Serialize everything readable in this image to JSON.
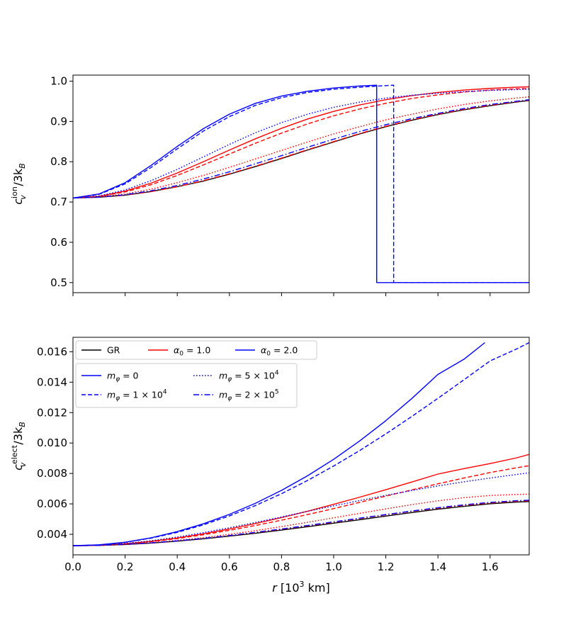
{
  "chart_data": [
    {
      "type": "line",
      "panel": "top",
      "ylabel": "c_v^ion/3k_B",
      "ylabel_main": "c",
      "ylabel_sup": "ion",
      "ylabel_sub": "v",
      "ylabel_rest": "/3k",
      "ylabel_rest_sub": "B",
      "xlim": [
        0.0,
        1.75
      ],
      "ylim": [
        0.475,
        1.015
      ],
      "yticks": [
        0.5,
        0.6,
        0.7,
        0.8,
        0.9,
        1.0
      ],
      "yticklabels": [
        "0.5",
        "0.6",
        "0.7",
        "0.8",
        "0.9",
        "1.0"
      ],
      "xticks": [
        0.0,
        0.2,
        0.4,
        0.6,
        0.8,
        1.0,
        1.2,
        1.4,
        1.6
      ],
      "xticklabels_visible": false,
      "series": [
        {
          "group": "GR",
          "style": "solid",
          "color": "#000000",
          "x": [
            0.0,
            0.1,
            0.2,
            0.3,
            0.4,
            0.5,
            0.6,
            0.7,
            0.8,
            0.9,
            1.0,
            1.1,
            1.2,
            1.3,
            1.4,
            1.5,
            1.6,
            1.7,
            1.75
          ],
          "y": [
            0.71,
            0.712,
            0.717,
            0.726,
            0.738,
            0.752,
            0.769,
            0.788,
            0.808,
            0.829,
            0.849,
            0.869,
            0.887,
            0.903,
            0.917,
            0.929,
            0.939,
            0.948,
            0.952
          ]
        },
        {
          "group": "alpha1",
          "style": "solid",
          "color": "#ff0000",
          "x": [
            0.0,
            0.1,
            0.2,
            0.3,
            0.4,
            0.5,
            0.6,
            0.7,
            0.8,
            0.9,
            1.0,
            1.1,
            1.2,
            1.3,
            1.4,
            1.5,
            1.6,
            1.7,
            1.75
          ],
          "y": [
            0.71,
            0.714,
            0.727,
            0.747,
            0.772,
            0.8,
            0.829,
            0.857,
            0.883,
            0.906,
            0.925,
            0.941,
            0.954,
            0.964,
            0.972,
            0.978,
            0.982,
            0.985,
            0.986
          ]
        },
        {
          "group": "alpha1",
          "style": "dashed",
          "color": "#ff0000",
          "x": [
            0.0,
            0.1,
            0.2,
            0.3,
            0.4,
            0.5,
            0.6,
            0.7,
            0.8,
            0.9,
            1.0,
            1.1,
            1.2,
            1.3,
            1.4,
            1.5,
            1.6,
            1.7,
            1.75
          ],
          "y": [
            0.71,
            0.714,
            0.725,
            0.743,
            0.766,
            0.792,
            0.819,
            0.846,
            0.871,
            0.894,
            0.914,
            0.931,
            0.945,
            0.957,
            0.966,
            0.973,
            0.978,
            0.981,
            0.982
          ]
        },
        {
          "group": "alpha1",
          "style": "dotted",
          "color": "#ff0000",
          "x": [
            0.0,
            0.1,
            0.2,
            0.3,
            0.4,
            0.5,
            0.6,
            0.7,
            0.8,
            0.9,
            1.0,
            1.1,
            1.2,
            1.3,
            1.4,
            1.5,
            1.6,
            1.7,
            1.75
          ],
          "y": [
            0.71,
            0.713,
            0.72,
            0.732,
            0.748,
            0.766,
            0.786,
            0.807,
            0.828,
            0.849,
            0.869,
            0.887,
            0.904,
            0.918,
            0.931,
            0.942,
            0.951,
            0.958,
            0.961
          ]
        },
        {
          "group": "alpha1",
          "style": "dashdot",
          "color": "#ff0000",
          "x": [
            0.0,
            0.1,
            0.2,
            0.3,
            0.4,
            0.5,
            0.6,
            0.7,
            0.8,
            0.9,
            1.0,
            1.1,
            1.2,
            1.3,
            1.4,
            1.5,
            1.6,
            1.7,
            1.75
          ],
          "y": [
            0.71,
            0.712,
            0.717,
            0.726,
            0.738,
            0.753,
            0.77,
            0.789,
            0.809,
            0.83,
            0.85,
            0.87,
            0.888,
            0.904,
            0.918,
            0.93,
            0.94,
            0.949,
            0.953
          ]
        },
        {
          "group": "alpha2",
          "style": "solid",
          "color": "#0000ff",
          "x": [
            0.0,
            0.1,
            0.2,
            0.3,
            0.4,
            0.5,
            0.6,
            0.7,
            0.8,
            0.9,
            1.0,
            1.1,
            1.165,
            1.165,
            1.75
          ],
          "y": [
            0.71,
            0.72,
            0.748,
            0.791,
            0.838,
            0.882,
            0.918,
            0.945,
            0.963,
            0.975,
            0.983,
            0.988,
            0.99,
            0.5,
            0.5
          ]
        },
        {
          "group": "alpha2",
          "style": "dashed",
          "color": "#0000ff",
          "x": [
            0.0,
            0.1,
            0.2,
            0.3,
            0.4,
            0.5,
            0.6,
            0.7,
            0.8,
            0.9,
            1.0,
            1.1,
            1.2,
            1.23,
            1.23,
            1.75
          ],
          "y": [
            0.71,
            0.719,
            0.745,
            0.786,
            0.832,
            0.876,
            0.912,
            0.94,
            0.959,
            0.972,
            0.98,
            0.985,
            0.989,
            0.99,
            0.5,
            0.5
          ]
        },
        {
          "group": "alpha2",
          "style": "dotted",
          "color": "#0000ff",
          "x": [
            0.0,
            0.1,
            0.2,
            0.3,
            0.4,
            0.5,
            0.6,
            0.7,
            0.8,
            0.9,
            1.0,
            1.1,
            1.2,
            1.3,
            1.4,
            1.5,
            1.6,
            1.7,
            1.75
          ],
          "y": [
            0.71,
            0.715,
            0.73,
            0.753,
            0.781,
            0.812,
            0.843,
            0.872,
            0.897,
            0.918,
            0.935,
            0.948,
            0.958,
            0.965,
            0.97,
            0.974,
            0.977,
            0.979,
            0.98
          ]
        },
        {
          "group": "alpha2",
          "style": "dashdot",
          "color": "#0000ff",
          "x": [
            0.0,
            0.1,
            0.2,
            0.3,
            0.4,
            0.5,
            0.6,
            0.7,
            0.8,
            0.9,
            1.0,
            1.1,
            1.2,
            1.3,
            1.4,
            1.5,
            1.6,
            1.7,
            1.75
          ],
          "y": [
            0.71,
            0.712,
            0.718,
            0.728,
            0.741,
            0.757,
            0.775,
            0.795,
            0.815,
            0.836,
            0.856,
            0.875,
            0.892,
            0.907,
            0.92,
            0.932,
            0.942,
            0.95,
            0.954
          ]
        }
      ]
    },
    {
      "type": "line",
      "panel": "bottom",
      "xlabel_main": "r",
      "xlabel_rest": " [10",
      "xlabel_sup": "3",
      "xlabel_end": " km]",
      "ylabel_main": "c",
      "ylabel_sup": "elect",
      "ylabel_sub": "v",
      "ylabel_rest": "/3k",
      "ylabel_rest_sub": "B",
      "xlim": [
        0.0,
        1.75
      ],
      "ylim": [
        0.00265,
        0.01695
      ],
      "xticks": [
        0.0,
        0.2,
        0.4,
        0.6,
        0.8,
        1.0,
        1.2,
        1.4,
        1.6
      ],
      "xticklabels": [
        "0.0",
        "0.2",
        "0.4",
        "0.6",
        "0.8",
        "1.0",
        "1.2",
        "1.4",
        "1.6"
      ],
      "yticks": [
        0.004,
        0.006,
        0.008,
        0.01,
        0.012,
        0.014,
        0.016
      ],
      "yticklabels": [
        "0.004",
        "0.006",
        "0.008",
        "0.010",
        "0.012",
        "0.014",
        "0.016"
      ],
      "legend_alpha": [
        {
          "label": "GR",
          "color": "#000000"
        },
        {
          "label_main": "α",
          "label_sub": "0",
          "label_rest": " = 1.0",
          "color": "#ff0000"
        },
        {
          "label_main": "α",
          "label_sub": "0",
          "label_rest": " = 2.0",
          "color": "#0000ff"
        }
      ],
      "legend_mass": [
        {
          "label_main": "m",
          "label_sub": "φ",
          "label_rest": " = 0",
          "style": "solid"
        },
        {
          "label_main": "m",
          "label_sub": "φ",
          "label_rest": " = 1 × 10",
          "label_sup": "4",
          "style": "dashed"
        },
        {
          "label_main": "m",
          "label_sub": "φ",
          "label_rest": " = 5 × 10",
          "label_sup": "4",
          "style": "dotted"
        },
        {
          "label_main": "m",
          "label_sub": "φ",
          "label_rest": " = 2 × 10",
          "label_sup": "5",
          "style": "dashdot"
        }
      ],
      "legend_placement": "top-left",
      "series": [
        {
          "group": "GR",
          "style": "solid",
          "color": "#000000",
          "x": [
            0.0,
            0.1,
            0.2,
            0.3,
            0.4,
            0.5,
            0.6,
            0.7,
            0.8,
            0.9,
            1.0,
            1.1,
            1.2,
            1.3,
            1.4,
            1.5,
            1.6,
            1.7,
            1.75
          ],
          "y": [
            0.00325,
            0.00327,
            0.00333,
            0.00342,
            0.00355,
            0.00371,
            0.0039,
            0.00412,
            0.00436,
            0.00462,
            0.0049,
            0.0052,
            0.0052,
            0.00552,
            0.00584,
            0.00617,
            0.0065,
            0.0068,
            0.00695
          ],
          "y_fixed": [
            0.00325,
            0.00327,
            0.00333,
            0.00342,
            0.00355,
            0.0037,
            0.00388,
            0.00407,
            0.00428,
            0.0045,
            0.00473,
            0.00496,
            0.0052,
            0.00543,
            0.00565,
            0.00584,
            0.00601,
            0.00612,
            0.00615
          ]
        },
        {
          "group": "alpha1",
          "style": "solid",
          "color": "#ff0000",
          "x": [
            0.0,
            0.1,
            0.2,
            0.3,
            0.4,
            0.5,
            0.6,
            0.7,
            0.8,
            0.9,
            1.0,
            1.1,
            1.2,
            1.3,
            1.4,
            1.5,
            1.6,
            1.7,
            1.75
          ],
          "y": [
            0.00325,
            0.00328,
            0.00338,
            0.00354,
            0.00376,
            0.00403,
            0.00435,
            0.00471,
            0.0051,
            0.00552,
            0.00597,
            0.00644,
            0.00693,
            0.00744,
            0.00796,
            0.00832,
            0.00865,
            0.00902,
            0.00925
          ]
        },
        {
          "group": "alpha1",
          "style": "dashed",
          "color": "#ff0000",
          "x": [
            0.0,
            0.1,
            0.2,
            0.3,
            0.4,
            0.5,
            0.6,
            0.7,
            0.8,
            0.9,
            1.0,
            1.1,
            1.2,
            1.3,
            1.4,
            1.5,
            1.6,
            1.7,
            1.75
          ],
          "y": [
            0.00325,
            0.00328,
            0.00337,
            0.00352,
            0.00372,
            0.00397,
            0.00426,
            0.00458,
            0.00493,
            0.0053,
            0.00569,
            0.0061,
            0.00651,
            0.00692,
            0.00732,
            0.0077,
            0.00806,
            0.00837,
            0.00851
          ]
        },
        {
          "group": "alpha1",
          "style": "dotted",
          "color": "#ff0000",
          "x": [
            0.0,
            0.1,
            0.2,
            0.3,
            0.4,
            0.5,
            0.6,
            0.7,
            0.8,
            0.9,
            1.0,
            1.1,
            1.2,
            1.3,
            1.4,
            1.5,
            1.6,
            1.7,
            1.75
          ],
          "y": [
            0.00325,
            0.00327,
            0.00334,
            0.00345,
            0.0036,
            0.00378,
            0.004,
            0.00424,
            0.00451,
            0.00479,
            0.00508,
            0.00538,
            0.00567,
            0.00595,
            0.0062,
            0.00641,
            0.00655,
            0.00662,
            0.00664
          ]
        },
        {
          "group": "alpha1",
          "style": "dashdot",
          "color": "#ff0000",
          "x": [
            0.0,
            0.1,
            0.2,
            0.3,
            0.4,
            0.5,
            0.6,
            0.7,
            0.8,
            0.9,
            1.0,
            1.1,
            1.2,
            1.3,
            1.4,
            1.5,
            1.6,
            1.7,
            1.75
          ],
          "y": [
            0.00325,
            0.00327,
            0.00333,
            0.00343,
            0.00356,
            0.00372,
            0.00391,
            0.00411,
            0.00433,
            0.00456,
            0.0048,
            0.00504,
            0.00528,
            0.00551,
            0.00572,
            0.00591,
            0.00606,
            0.00617,
            0.0062
          ]
        },
        {
          "group": "alpha2",
          "style": "solid",
          "color": "#0000ff",
          "x": [
            0.0,
            0.1,
            0.2,
            0.3,
            0.4,
            0.5,
            0.6,
            0.7,
            0.8,
            0.9,
            1.0,
            1.1,
            1.2,
            1.3,
            1.4,
            1.5,
            1.58
          ],
          "y": [
            0.00325,
            0.00331,
            0.00348,
            0.00377,
            0.00418,
            0.00469,
            0.00531,
            0.00604,
            0.00689,
            0.00785,
            0.00893,
            0.01014,
            0.01147,
            0.01293,
            0.01451,
            0.01551,
            0.0166
          ]
        },
        {
          "group": "alpha2",
          "style": "dashed",
          "color": "#0000ff",
          "x": [
            0.0,
            0.1,
            0.2,
            0.3,
            0.4,
            0.5,
            0.6,
            0.7,
            0.8,
            0.9,
            1.0,
            1.1,
            1.2,
            1.3,
            1.4,
            1.5,
            1.6,
            1.7,
            1.75
          ],
          "y": [
            0.00325,
            0.0033,
            0.00347,
            0.00375,
            0.00413,
            0.00462,
            0.00521,
            0.00589,
            0.00667,
            0.00754,
            0.00849,
            0.00951,
            0.0106,
            0.01175,
            0.01294,
            0.01416,
            0.0154,
            0.01617,
            0.0166
          ]
        },
        {
          "group": "alpha2",
          "style": "dotted",
          "color": "#0000ff",
          "x": [
            0.0,
            0.1,
            0.2,
            0.3,
            0.4,
            0.5,
            0.6,
            0.7,
            0.8,
            0.9,
            1.0,
            1.1,
            1.2,
            1.3,
            1.4,
            1.5,
            1.6,
            1.7,
            1.75
          ],
          "y": [
            0.00325,
            0.00329,
            0.0034,
            0.00358,
            0.00382,
            0.00411,
            0.00443,
            0.00478,
            0.00514,
            0.00551,
            0.00587,
            0.00622,
            0.00656,
            0.00688,
            0.00718,
            0.00745,
            0.0077,
            0.00793,
            0.00804
          ]
        },
        {
          "group": "alpha2",
          "style": "dashdot",
          "color": "#0000ff",
          "x": [
            0.0,
            0.1,
            0.2,
            0.3,
            0.4,
            0.5,
            0.6,
            0.7,
            0.8,
            0.9,
            1.0,
            1.1,
            1.2,
            1.3,
            1.4,
            1.5,
            1.6,
            1.7,
            1.75
          ],
          "y": [
            0.00325,
            0.00327,
            0.00334,
            0.00344,
            0.00357,
            0.00373,
            0.00392,
            0.00413,
            0.00435,
            0.00458,
            0.00482,
            0.00506,
            0.0053,
            0.00553,
            0.00575,
            0.00594,
            0.0061,
            0.00621,
            0.00624
          ]
        }
      ]
    }
  ]
}
